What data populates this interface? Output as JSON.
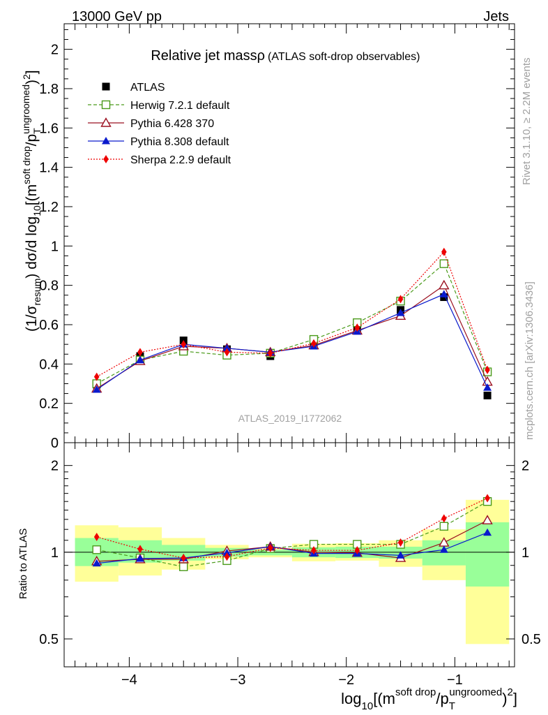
{
  "header": {
    "left": "13000 GeV pp",
    "right": "Jets"
  },
  "side_labels": {
    "rivet": "Rivet 3.1.10, ≥ 2.2M events",
    "mcplots": "mcplots.cern.ch [arXiv:1306.3436]"
  },
  "chart_data": {
    "type": "line",
    "title": "Relative jet massρ",
    "subtitle": "(ATLAS soft-drop observables)",
    "watermark": "ATLAS_2019_I1772062",
    "xlabel": {
      "prefix": "log",
      "sub10": "10",
      "open": "[(m",
      "sup_sd": "soft drop",
      "slash": "/p",
      "sub_T": "T",
      "sup_ug": "ungroomed",
      "close": ")",
      "sup2": "2",
      "end": "]"
    },
    "ylabel": {
      "open": "(1/σ",
      "sub_resum": "resum",
      "mid": ") dσ/d log",
      "sub10": "10",
      "open2": "[(m",
      "sup_sd": "soft drop",
      "slash": "/p",
      "sub_T": "T",
      "sup_ug": "ungroomed",
      "close": ")",
      "sup2": "2",
      "end": "]"
    },
    "ratio_ylabel": "Ratio to ATLAS",
    "xlim": [
      -4.6,
      -0.45
    ],
    "ylim": [
      0,
      2.13
    ],
    "ratio_ylim": [
      0.4,
      2.4
    ],
    "ratio_log": true,
    "x_ticks": [
      "−4",
      "−3",
      "−2",
      "−1"
    ],
    "x_tick_values": [
      -4,
      -3,
      -2,
      -1
    ],
    "y_ticks": [
      "0",
      "0.2",
      "0.4",
      "0.6",
      "0.8",
      "1",
      "1.2",
      "1.4",
      "1.6",
      "1.8",
      "2"
    ],
    "y_tick_values": [
      0,
      0.2,
      0.4,
      0.6,
      0.8,
      1,
      1.2,
      1.4,
      1.6,
      1.8,
      2
    ],
    "ratio_ticks": [
      "0.5",
      "1",
      "2"
    ],
    "ratio_tick_values": [
      0.5,
      1,
      2
    ],
    "x": [
      -4.3,
      -3.9,
      -3.5,
      -3.1,
      -2.7,
      -2.3,
      -1.9,
      -1.5,
      -1.1,
      -0.7
    ],
    "bin_edges": [
      -4.5,
      -4.1,
      -3.7,
      -3.3,
      -2.9,
      -2.5,
      -2.1,
      -1.7,
      -1.3,
      -0.9,
      -0.5
    ],
    "series": [
      {
        "name": "ATLAS",
        "color": "#000000",
        "marker": "filled-square",
        "line": "none",
        "values": [
          0.295,
          0.44,
          0.52,
          0.475,
          0.44,
          0.495,
          0.57,
          0.675,
          0.74,
          0.24
        ]
      },
      {
        "name": "Herwig 7.2.1 default",
        "color": "#4a9a1a",
        "marker": "open-square",
        "line": "dashed",
        "values": [
          0.3,
          0.42,
          0.465,
          0.445,
          0.455,
          0.525,
          0.61,
          0.72,
          0.91,
          0.36
        ]
      },
      {
        "name": "Pythia 6.428 370",
        "color": "#9b1020",
        "marker": "open-triangle",
        "line": "solid",
        "values": [
          0.275,
          0.415,
          0.49,
          0.48,
          0.46,
          0.495,
          0.57,
          0.645,
          0.8,
          0.31
        ]
      },
      {
        "name": "Pythia 8.308 default",
        "color": "#0a1acc",
        "marker": "filled-triangle",
        "line": "solid",
        "values": [
          0.27,
          0.42,
          0.5,
          0.48,
          0.46,
          0.49,
          0.565,
          0.66,
          0.755,
          0.28
        ]
      },
      {
        "name": "Sherpa 2.2.9 default",
        "color": "#ee0000",
        "marker": "filled-diamond",
        "line": "dotted",
        "values": [
          0.335,
          0.46,
          0.5,
          0.46,
          0.455,
          0.505,
          0.585,
          0.73,
          0.97,
          0.37
        ]
      }
    ],
    "ratio_series": [
      {
        "name": "Herwig 7.2.1 default",
        "values": [
          1.02,
          0.955,
          0.89,
          0.935,
          1.03,
          1.065,
          1.065,
          1.065,
          1.23,
          1.5
        ]
      },
      {
        "name": "Pythia 6.428 370",
        "values": [
          0.93,
          0.945,
          0.945,
          1.01,
          1.045,
          1.0,
          0.995,
          0.955,
          1.08,
          1.29
        ]
      },
      {
        "name": "Pythia 8.308 default",
        "values": [
          0.915,
          0.95,
          0.955,
          0.995,
          1.045,
          0.99,
          0.99,
          0.975,
          1.02,
          1.17
        ]
      },
      {
        "name": "Sherpa 2.2.9 default",
        "values": [
          1.13,
          1.025,
          0.955,
          0.965,
          1.035,
          1.015,
          1.015,
          1.08,
          1.31,
          1.54
        ]
      }
    ],
    "uncertainty_bands": {
      "inner_color": "#99ff99",
      "outer_color": "#ffff99",
      "inner": [
        [
          0.895,
          1.12
        ],
        [
          0.92,
          1.1
        ],
        [
          0.935,
          1.06
        ],
        [
          0.965,
          1.035
        ],
        [
          0.975,
          1.02
        ],
        [
          0.96,
          1.04
        ],
        [
          0.955,
          1.045
        ],
        [
          0.95,
          1.045
        ],
        [
          0.9,
          1.1
        ],
        [
          0.76,
          1.27
        ]
      ],
      "outer": [
        [
          0.79,
          1.24
        ],
        [
          0.83,
          1.22
        ],
        [
          0.87,
          1.12
        ],
        [
          0.945,
          1.06
        ],
        [
          0.96,
          1.03
        ],
        [
          0.93,
          1.07
        ],
        [
          0.935,
          1.075
        ],
        [
          0.89,
          1.1
        ],
        [
          0.8,
          1.2
        ],
        [
          0.48,
          1.52
        ]
      ]
    },
    "legend_placement": "top-left",
    "grid": false
  }
}
